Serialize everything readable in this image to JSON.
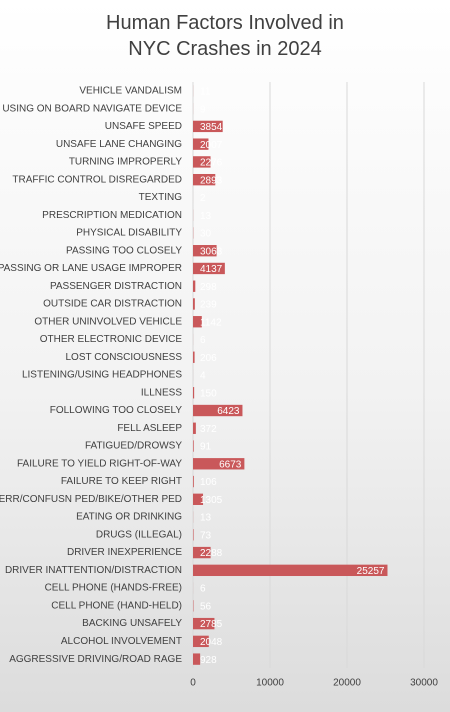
{
  "chart_data": {
    "type": "bar",
    "orientation": "horizontal",
    "title": "Human Factors Involved in NYC Crashes in 2024",
    "categories": [
      "VEHICLE VANDALISM",
      "USING ON BOARD NAVIGATE DEVICE",
      "UNSAFE SPEED",
      "UNSAFE LANE CHANGING",
      "TURNING IMPROPERLY",
      "TRAFFIC CONTROL DISREGARDED",
      "TEXTING",
      "PRESCRIPTION MEDICATION",
      "PHYSICAL DISABILITY",
      "PASSING TOO CLOSELY",
      "PASSING OR LANE USAGE IMPROPER",
      "PASSENGER DISTRACTION",
      "OUTSIDE CAR DISTRACTION",
      "OTHER UNINVOLVED VEHICLE",
      "OTHER ELECTRONIC DEVICE",
      "LOST CONSCIOUSNESS",
      "LISTENING/USING HEADPHONES",
      "ILLNESS",
      "FOLLOWING TOO CLOSELY",
      "FELL ASLEEP",
      "FATIGUED/DROWSY",
      "FAILURE TO YIELD RIGHT-OF-WAY",
      "FAILURE TO KEEP RIGHT",
      "ERR/CONFUSN  PED/BIKE/OTHER PED",
      "EATING OR DRINKING",
      "DRUGS (ILLEGAL)",
      "DRIVER INEXPERIENCE",
      "DRIVER INATTENTION/DISTRACTION",
      "CELL PHONE (HANDS-FREE)",
      "CELL PHONE (HAND-HELD)",
      "BACKING UNSAFELY",
      "ALCOHOL INVOLVEMENT",
      "AGGRESSIVE DRIVING/ROAD RAGE"
    ],
    "values": [
      11,
      9,
      3854,
      2007,
      2276,
      2893,
      2,
      13,
      30,
      3063,
      4137,
      298,
      239,
      1142,
      6,
      206,
      4,
      150,
      6423,
      372,
      91,
      6673,
      106,
      1305,
      13,
      73,
      2288,
      25257,
      6,
      56,
      2785,
      2048,
      928
    ],
    "color": "#c9585a",
    "xlim": [
      0,
      30000
    ],
    "xticks": [
      0,
      10000,
      20000,
      30000
    ],
    "grid": true
  }
}
